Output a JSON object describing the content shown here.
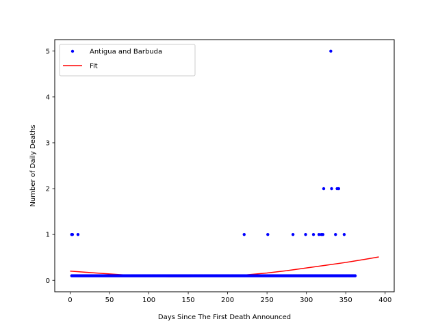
{
  "chart_data": {
    "type": "scatter",
    "title": "",
    "xlabel": "Days Since The First Death Announced",
    "ylabel": "Number of Daily Deaths",
    "xlim": [
      -19.5,
      411.5
    ],
    "ylim": [
      -0.25,
      5.25
    ],
    "xticks": [
      0,
      50,
      100,
      150,
      200,
      250,
      300,
      350,
      400
    ],
    "yticks": [
      0,
      1,
      2,
      3,
      4,
      5
    ],
    "grid": false,
    "legend_position": "top-left",
    "series": [
      {
        "name": "Antigua and Barbuda",
        "kind": "points",
        "color": "#0000ff",
        "baseline_value": 0.1,
        "baseline_x_range": [
          2,
          362
        ],
        "points": [
          [
            2,
            1
          ],
          [
            3,
            1
          ],
          [
            10,
            1
          ],
          [
            221,
            1
          ],
          [
            251,
            1
          ],
          [
            283,
            1
          ],
          [
            299,
            1
          ],
          [
            309,
            1
          ],
          [
            316,
            1
          ],
          [
            319,
            1
          ],
          [
            321,
            1
          ],
          [
            322,
            2
          ],
          [
            331,
            5
          ],
          [
            332,
            2
          ],
          [
            337,
            1
          ],
          [
            339,
            2
          ],
          [
            341,
            2
          ],
          [
            348,
            1
          ]
        ]
      },
      {
        "name": "Fit",
        "kind": "line",
        "color": "#ff0000",
        "points": [
          [
            0,
            0.2
          ],
          [
            25,
            0.17
          ],
          [
            50,
            0.14
          ],
          [
            75,
            0.11
          ],
          [
            100,
            0.09
          ],
          [
            125,
            0.08
          ],
          [
            150,
            0.08
          ],
          [
            175,
            0.09
          ],
          [
            200,
            0.1
          ],
          [
            225,
            0.12
          ],
          [
            250,
            0.16
          ],
          [
            275,
            0.21
          ],
          [
            300,
            0.27
          ],
          [
            325,
            0.33
          ],
          [
            350,
            0.39
          ],
          [
            375,
            0.46
          ],
          [
            392,
            0.51
          ]
        ]
      }
    ]
  }
}
